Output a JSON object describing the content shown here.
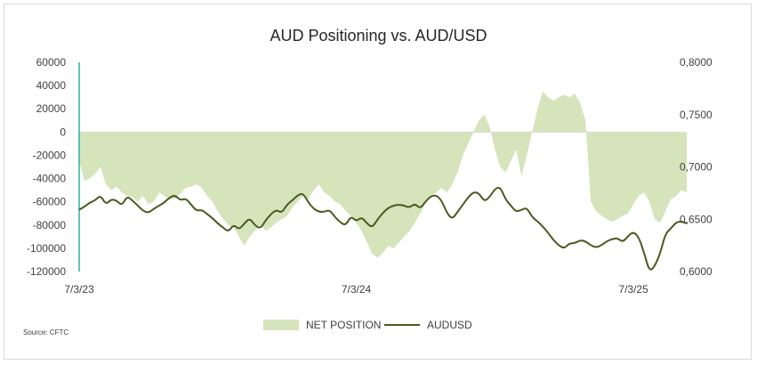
{
  "title": "AUD Positioning vs. AUD/USD",
  "source": "Source: CFTC",
  "legend": {
    "area_label": "NET POSITION",
    "line_label": "AUDUSD"
  },
  "colors": {
    "area": "#d6e4bb",
    "line": "#4a5a1f",
    "axis": "#2ab0a8",
    "text": "#404040"
  },
  "chart_data": {
    "type": "area",
    "title": "AUD Positioning vs. AUD/USD",
    "x_tick_labels": [
      "7/3/23",
      "7/3/24",
      "7/3/25"
    ],
    "x_tick_positions_data": [
      0,
      52,
      104
    ],
    "x_range": [
      0,
      113
    ],
    "y_left": {
      "ticks": [
        "60000",
        "40000",
        "20000",
        "0",
        "-20000",
        "-40000",
        "-60000",
        "-80000",
        "-100000",
        "-120000"
      ],
      "range": [
        -120000,
        60000
      ]
    },
    "y_right": {
      "ticks": [
        "0,8000",
        "0,7500",
        "0,7000",
        "0,6500",
        "0,6000"
      ],
      "range": [
        0.6,
        0.8
      ]
    },
    "series": [
      {
        "name": "NET POSITION",
        "type": "area",
        "axis": "left",
        "values": [
          -25000,
          -42000,
          -40000,
          -36000,
          -30000,
          -45000,
          -50000,
          -47000,
          -52000,
          -55000,
          -56000,
          -60000,
          -55000,
          -62000,
          -60000,
          -52000,
          -55000,
          -58000,
          -57000,
          -53000,
          -48000,
          -47000,
          -45000,
          -48000,
          -55000,
          -60000,
          -68000,
          -75000,
          -80000,
          -82000,
          -90000,
          -98000,
          -90000,
          -85000,
          -80000,
          -85000,
          -82000,
          -78000,
          -75000,
          -72000,
          -65000,
          -60000,
          -55000,
          -58000,
          -50000,
          -45000,
          -52000,
          -55000,
          -60000,
          -62000,
          -68000,
          -72000,
          -78000,
          -85000,
          -95000,
          -105000,
          -108000,
          -104000,
          -98000,
          -100000,
          -95000,
          -90000,
          -85000,
          -78000,
          -70000,
          -60000,
          -55000,
          -52000,
          -48000,
          -52000,
          -45000,
          -35000,
          -20000,
          -10000,
          0,
          10000,
          15000,
          5000,
          -15000,
          -30000,
          -35000,
          -25000,
          -15000,
          -38000,
          -20000,
          0,
          20000,
          35000,
          30000,
          27000,
          30000,
          32000,
          30000,
          33000,
          25000,
          10000,
          -60000,
          -68000,
          -72000,
          -75000,
          -77000,
          -75000,
          -72000,
          -70000,
          -62000,
          -55000,
          -52000,
          -60000,
          -75000,
          -78000,
          -68000,
          -58000,
          -55000,
          -50000,
          -52000
        ],
        "note": "values estimated weekly-ish samples"
      },
      {
        "name": "AUDUSD",
        "type": "line",
        "axis": "right",
        "values": [
          0.659,
          0.662,
          0.666,
          0.668,
          0.673,
          0.664,
          0.669,
          0.668,
          0.663,
          0.672,
          0.668,
          0.663,
          0.658,
          0.656,
          0.66,
          0.663,
          0.666,
          0.671,
          0.673,
          0.668,
          0.67,
          0.664,
          0.658,
          0.659,
          0.655,
          0.651,
          0.646,
          0.642,
          0.638,
          0.645,
          0.64,
          0.646,
          0.651,
          0.644,
          0.641,
          0.649,
          0.655,
          0.659,
          0.656,
          0.664,
          0.668,
          0.673,
          0.675,
          0.666,
          0.66,
          0.657,
          0.657,
          0.659,
          0.652,
          0.647,
          0.644,
          0.653,
          0.648,
          0.652,
          0.646,
          0.642,
          0.65,
          0.656,
          0.661,
          0.663,
          0.664,
          0.663,
          0.661,
          0.665,
          0.66,
          0.667,
          0.672,
          0.673,
          0.668,
          0.656,
          0.65,
          0.657,
          0.664,
          0.671,
          0.676,
          0.675,
          0.667,
          0.671,
          0.679,
          0.681,
          0.669,
          0.663,
          0.657,
          0.659,
          0.661,
          0.652,
          0.648,
          0.643,
          0.637,
          0.63,
          0.625,
          0.622,
          0.627,
          0.627,
          0.63,
          0.629,
          0.625,
          0.623,
          0.625,
          0.629,
          0.631,
          0.632,
          0.628,
          0.634,
          0.638,
          0.633,
          0.618,
          0.6,
          0.605,
          0.617,
          0.636,
          0.641,
          0.647,
          0.648,
          0.646
        ]
      }
    ],
    "grid": false,
    "legend_position": "bottom"
  }
}
